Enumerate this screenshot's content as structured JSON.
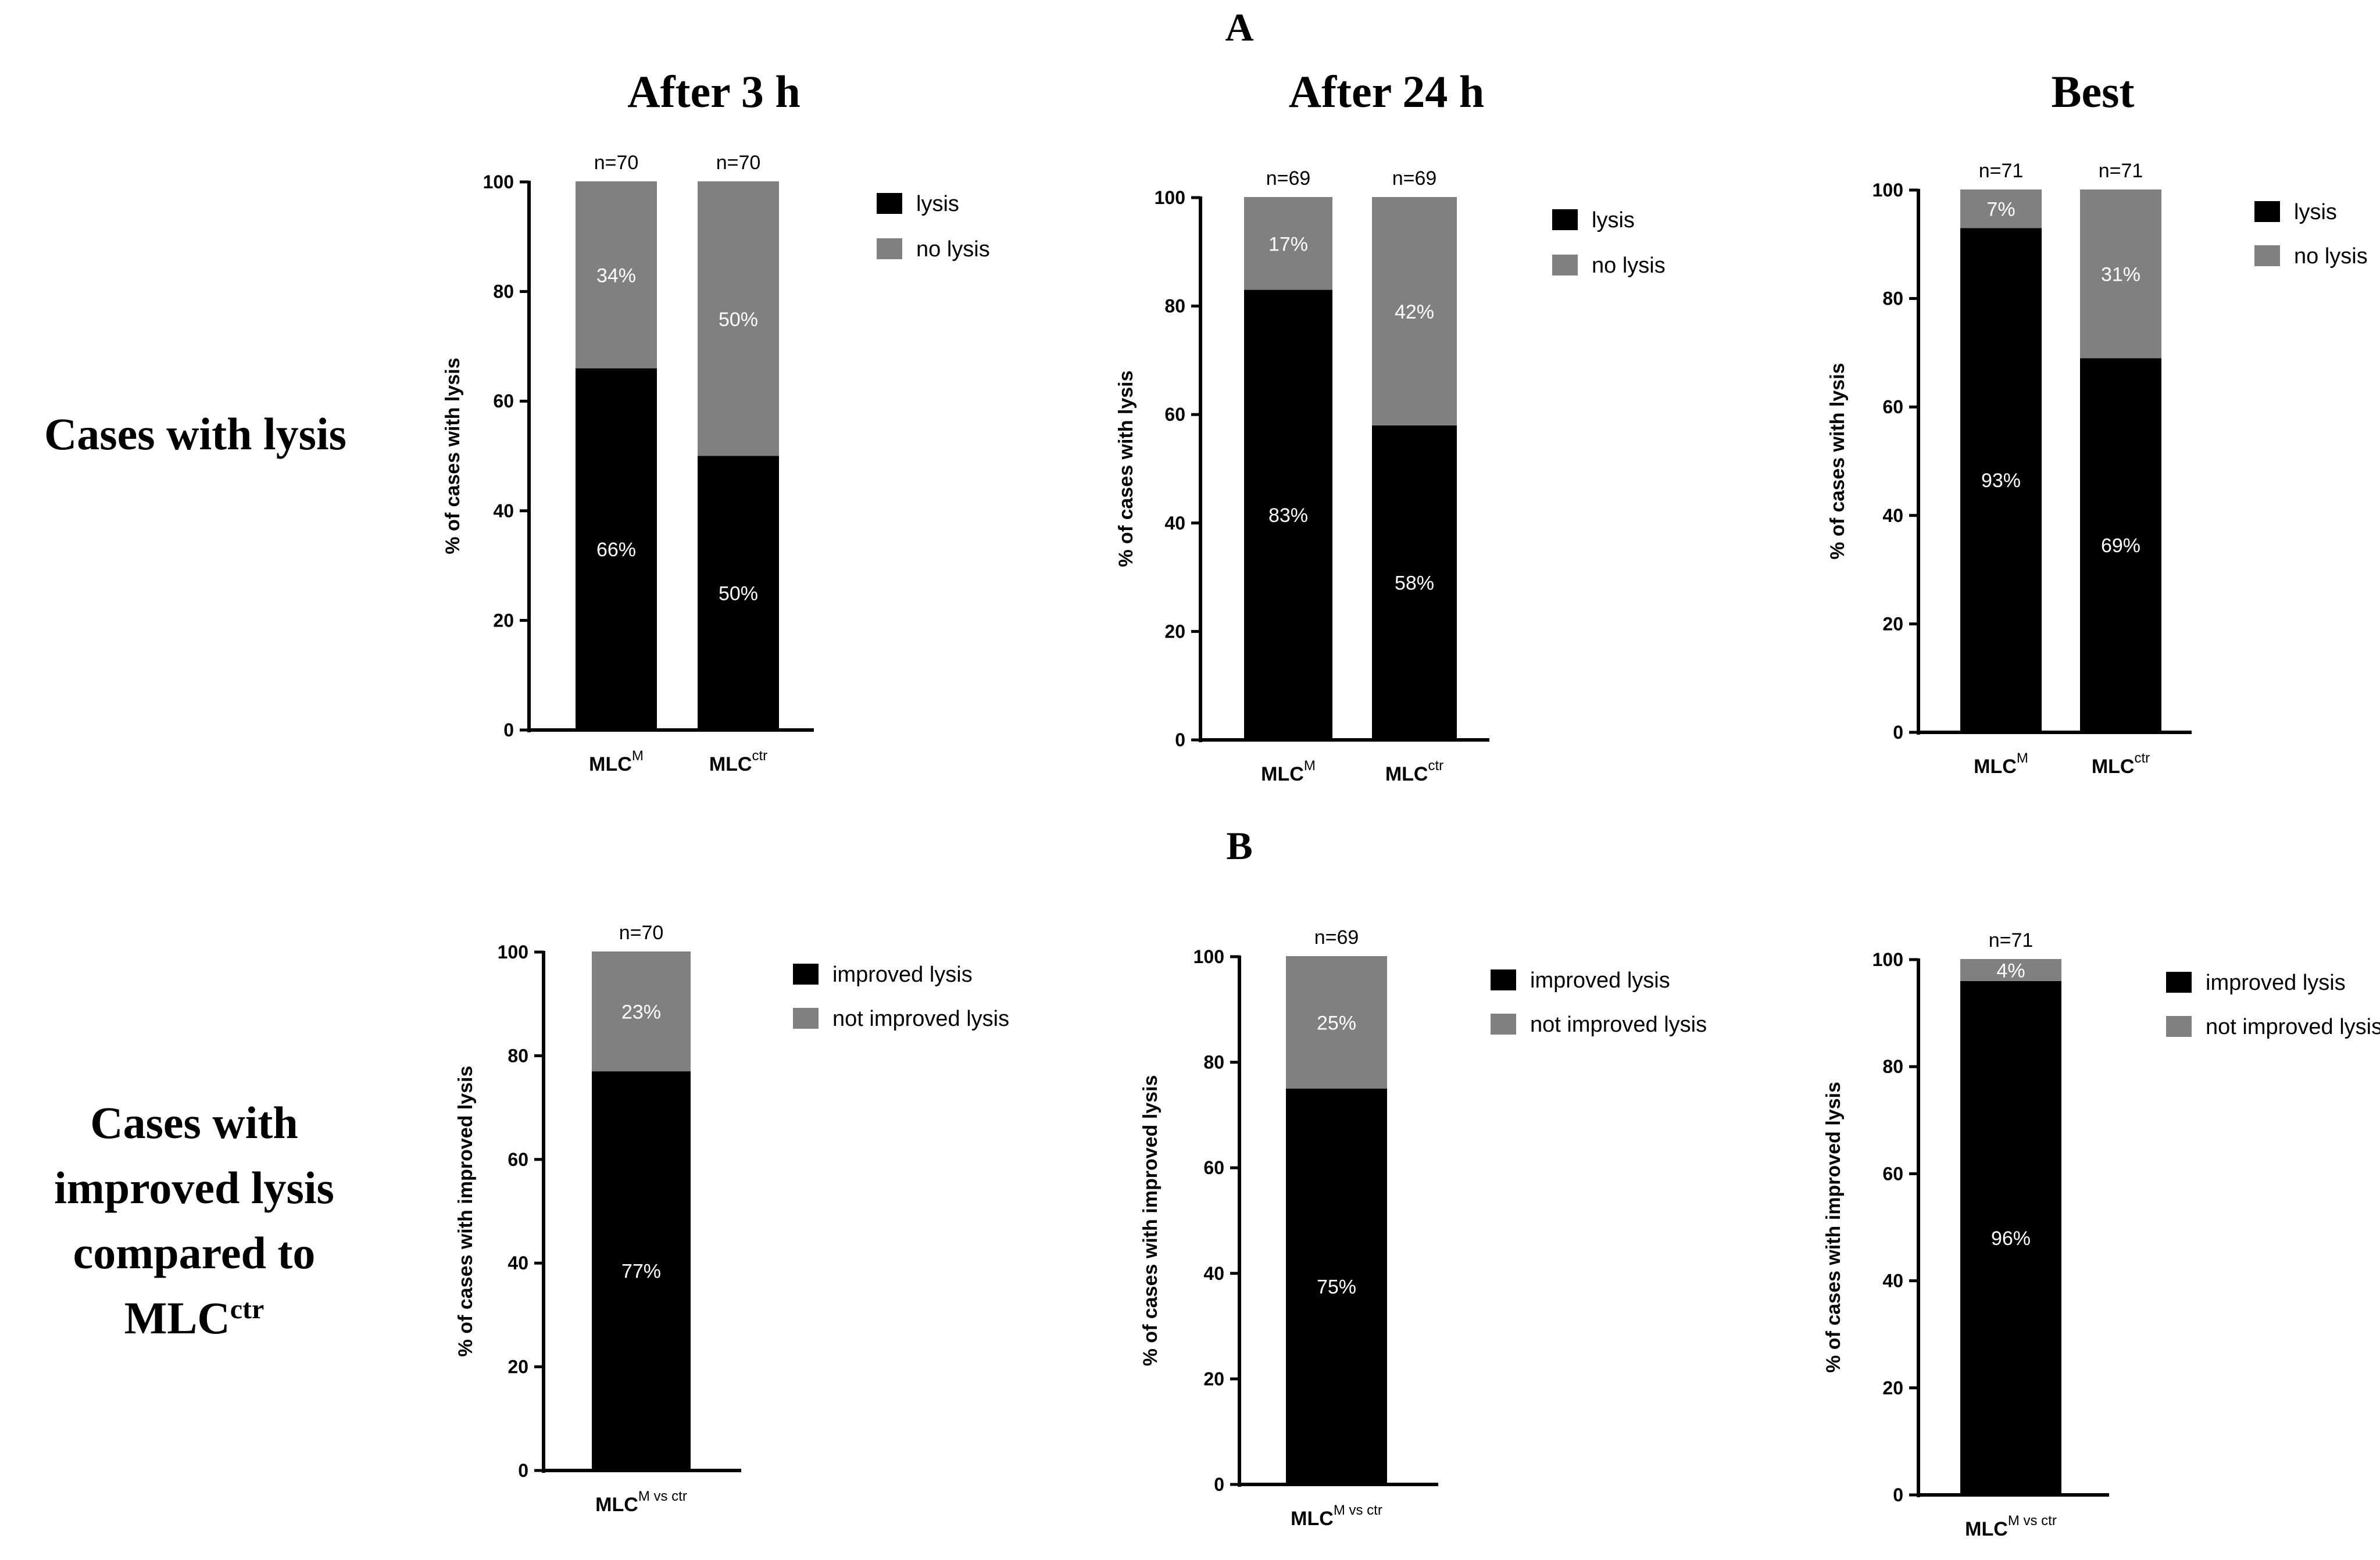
{
  "headings": {
    "section_a": "A",
    "section_b": "B",
    "col_3h": "After 3 h",
    "col_24h": "After 24 h",
    "col_best": "Best",
    "row_lysis": "Cases with lysis",
    "row_improved_line1": "Cases with",
    "row_improved_line2": "improved lysis",
    "row_improved_line3": "compared to",
    "row_improved_line4_base": "MLC",
    "row_improved_line4_sup": "ctr"
  },
  "colors": {
    "lysis": "#000000",
    "no_lysis": "#808080",
    "background": "#ffffff"
  },
  "chart_data": [
    {
      "type": "bar",
      "stacked": true,
      "panel": "A",
      "column": "After 3 h",
      "ylabel": "% of cases with lysis",
      "ylim": [
        0,
        100
      ],
      "yticks": [
        0,
        20,
        40,
        60,
        80,
        100
      ],
      "categories": [
        {
          "base": "MLC",
          "sup": "M"
        },
        {
          "base": "MLC",
          "sup": "ctr"
        }
      ],
      "n_labels": [
        "n=70",
        "n=70"
      ],
      "series": [
        {
          "name": "lysis",
          "values": [
            66,
            50
          ],
          "labels": [
            "66%",
            "50%"
          ]
        },
        {
          "name": "no lysis",
          "values": [
            34,
            50
          ],
          "labels": [
            "34%",
            "50%"
          ]
        }
      ],
      "legend": [
        "lysis",
        "no lysis"
      ]
    },
    {
      "type": "bar",
      "stacked": true,
      "panel": "A",
      "column": "After 24 h",
      "ylabel": "% of cases with lysis",
      "ylim": [
        0,
        100
      ],
      "yticks": [
        0,
        20,
        40,
        60,
        80,
        100
      ],
      "categories": [
        {
          "base": "MLC",
          "sup": "M"
        },
        {
          "base": "MLC",
          "sup": "ctr"
        }
      ],
      "n_labels": [
        "n=69",
        "n=69"
      ],
      "series": [
        {
          "name": "lysis",
          "values": [
            83,
            58
          ],
          "labels": [
            "83%",
            "58%"
          ]
        },
        {
          "name": "no lysis",
          "values": [
            17,
            42
          ],
          "labels": [
            "17%",
            "42%"
          ]
        }
      ],
      "legend": [
        "lysis",
        "no lysis"
      ]
    },
    {
      "type": "bar",
      "stacked": true,
      "panel": "A",
      "column": "Best",
      "ylabel": "% of cases with lysis",
      "ylim": [
        0,
        100
      ],
      "yticks": [
        0,
        20,
        40,
        60,
        80,
        100
      ],
      "categories": [
        {
          "base": "MLC",
          "sup": "M"
        },
        {
          "base": "MLC",
          "sup": "ctr"
        }
      ],
      "n_labels": [
        "n=71",
        "n=71"
      ],
      "series": [
        {
          "name": "lysis",
          "values": [
            93,
            69
          ],
          "labels": [
            "93%",
            "69%"
          ]
        },
        {
          "name": "no lysis",
          "values": [
            7,
            31
          ],
          "labels": [
            "7%",
            "31%"
          ]
        }
      ],
      "legend": [
        "lysis",
        "no lysis"
      ]
    },
    {
      "type": "bar",
      "stacked": true,
      "panel": "B",
      "column": "After 3 h",
      "ylabel": "% of cases with improved  lysis",
      "ylim": [
        0,
        100
      ],
      "yticks": [
        0,
        20,
        40,
        60,
        80,
        100
      ],
      "categories": [
        {
          "base": "MLC",
          "sup": "M vs ctr"
        }
      ],
      "n_labels": [
        "n=70"
      ],
      "series": [
        {
          "name": "improved lysis",
          "values": [
            77
          ],
          "labels": [
            "77%"
          ]
        },
        {
          "name": "not improved lysis",
          "values": [
            23
          ],
          "labels": [
            "23%"
          ]
        }
      ],
      "legend": [
        "improved lysis",
        "not improved lysis"
      ]
    },
    {
      "type": "bar",
      "stacked": true,
      "panel": "B",
      "column": "After 24 h",
      "ylabel": "% of cases with improved  lysis",
      "ylim": [
        0,
        100
      ],
      "yticks": [
        0,
        20,
        40,
        60,
        80,
        100
      ],
      "categories": [
        {
          "base": "MLC",
          "sup": "M vs ctr"
        }
      ],
      "n_labels": [
        "n=69"
      ],
      "series": [
        {
          "name": "improved lysis",
          "values": [
            75
          ],
          "labels": [
            "75%"
          ]
        },
        {
          "name": "not improved lysis",
          "values": [
            25
          ],
          "labels": [
            "25%"
          ]
        }
      ],
      "legend": [
        "improved lysis",
        "not improved lysis"
      ]
    },
    {
      "type": "bar",
      "stacked": true,
      "panel": "B",
      "column": "Best",
      "ylabel": "% of cases with improved  lysis",
      "ylim": [
        0,
        100
      ],
      "yticks": [
        0,
        20,
        40,
        60,
        80,
        100
      ],
      "categories": [
        {
          "base": "MLC",
          "sup": "M vs ctr"
        }
      ],
      "n_labels": [
        "n=71"
      ],
      "series": [
        {
          "name": "improved lysis",
          "values": [
            96
          ],
          "labels": [
            "96%"
          ]
        },
        {
          "name": "not improved lysis",
          "values": [
            4
          ],
          "labels": [
            "4%"
          ]
        }
      ],
      "legend": [
        "improved lysis",
        "not improved lysis"
      ]
    }
  ]
}
